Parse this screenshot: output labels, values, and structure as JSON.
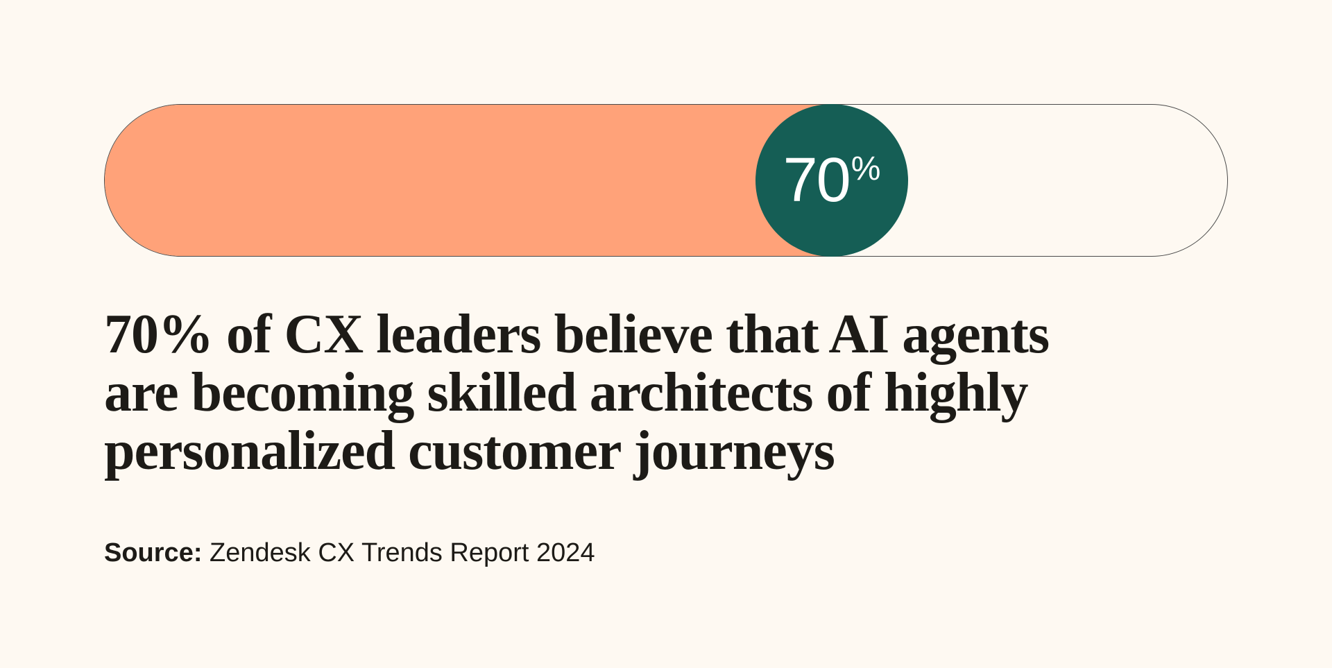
{
  "colors": {
    "background": "#fef9f2",
    "fill": "#ffa279",
    "knob": "#155e55",
    "text": "#1d1b17"
  },
  "chart_data": {
    "type": "bar",
    "values": [
      70
    ],
    "max": 100,
    "value_label": "70",
    "value_unit": "%"
  },
  "headline": {
    "lines": [
      "70% of CX leaders believe that AI agents",
      "are becoming skilled architects of highly",
      "personalized customer journeys"
    ]
  },
  "source": {
    "label": "Source:",
    "text": "Zendesk CX Trends Report 2024"
  }
}
